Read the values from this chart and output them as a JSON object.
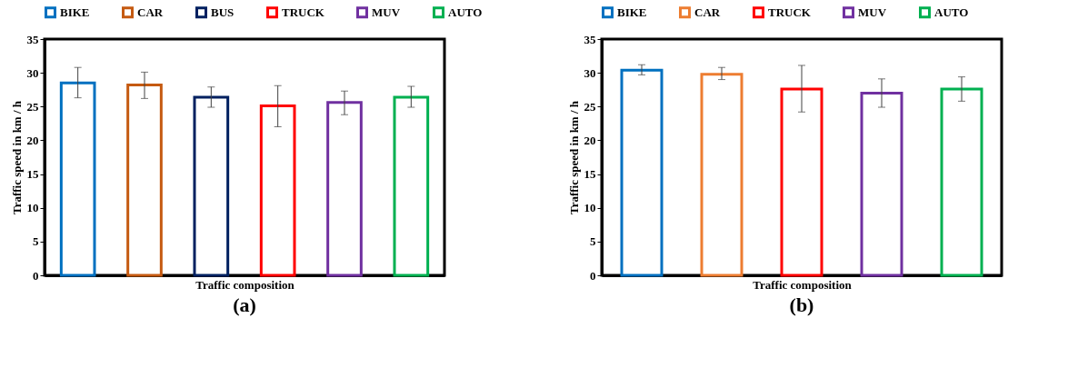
{
  "chart_data": [
    {
      "type": "bar",
      "categories": [
        null,
        null,
        null,
        null,
        null,
        null
      ],
      "xlabel": "Traffic composition",
      "ylabel": "Traffic speed in km / h",
      "ylim": [
        0,
        35
      ],
      "yticks": [
        0,
        5,
        10,
        15,
        20,
        25,
        30,
        35
      ],
      "grid": false,
      "legend": "top",
      "tick_labels": "y",
      "annotations": [
        "(a)"
      ],
      "series": [
        {
          "name": "BIKE",
          "color": "#0070c0",
          "values": [
            28.5,
            null,
            null,
            null,
            null,
            null
          ],
          "errors": [
            [
              26.3,
              30.8
            ],
            null,
            null,
            null,
            null,
            null
          ]
        },
        {
          "name": "CAR",
          "color": "#c55a11",
          "values": [
            null,
            28.2,
            null,
            null,
            null,
            null
          ],
          "errors": [
            null,
            [
              26.2,
              30.1
            ],
            null,
            null,
            null,
            null
          ]
        },
        {
          "name": "BUS",
          "color": "#002060",
          "values": [
            null,
            null,
            26.4,
            null,
            null,
            null
          ],
          "errors": [
            null,
            null,
            [
              24.9,
              27.9
            ],
            null,
            null,
            null
          ]
        },
        {
          "name": "TRUCK",
          "color": "#ff0000",
          "values": [
            null,
            null,
            null,
            25.1,
            null,
            null
          ],
          "errors": [
            null,
            null,
            null,
            [
              22.0,
              28.1
            ],
            null,
            null
          ]
        },
        {
          "name": "MUV",
          "color": "#7030a0",
          "values": [
            null,
            null,
            null,
            null,
            25.6,
            null
          ],
          "errors": [
            null,
            null,
            null,
            null,
            [
              23.8,
              27.3
            ],
            null
          ]
        },
        {
          "name": "AUTO",
          "color": "#00b050",
          "values": [
            null,
            null,
            null,
            null,
            null,
            26.4
          ],
          "errors": [
            null,
            null,
            null,
            null,
            null,
            [
              24.9,
              28.0
            ]
          ]
        }
      ]
    },
    {
      "type": "bar",
      "categories": [
        null,
        null,
        null,
        null,
        null
      ],
      "xlabel": "Traffic composition",
      "ylabel": "Traffic speed in km / h",
      "ylim": [
        0,
        35
      ],
      "yticks": [
        0,
        5,
        10,
        15,
        20,
        25,
        30,
        35
      ],
      "grid": false,
      "legend": "top",
      "tick_labels": "y",
      "annotations": [
        "(b)"
      ],
      "series": [
        {
          "name": "BIKE",
          "color": "#0070c0",
          "values": [
            30.4,
            null,
            null,
            null,
            null
          ],
          "errors": [
            [
              29.7,
              31.2
            ],
            null,
            null,
            null,
            null
          ]
        },
        {
          "name": "CAR",
          "color": "#ed7d31",
          "values": [
            null,
            29.8,
            null,
            null,
            null
          ],
          "errors": [
            null,
            [
              29.0,
              30.8
            ],
            null,
            null,
            null
          ]
        },
        {
          "name": "TRUCK",
          "color": "#ff0000",
          "values": [
            null,
            null,
            27.6,
            null,
            null
          ],
          "errors": [
            null,
            null,
            [
              24.2,
              31.1
            ],
            null,
            null
          ]
        },
        {
          "name": "MUV",
          "color": "#7030a0",
          "values": [
            null,
            null,
            null,
            27.0,
            null
          ],
          "errors": [
            null,
            null,
            null,
            [
              24.9,
              29.1
            ],
            null
          ]
        },
        {
          "name": "AUTO",
          "color": "#00b050",
          "values": [
            null,
            null,
            null,
            null,
            27.6
          ],
          "errors": [
            null,
            null,
            null,
            null,
            [
              25.8,
              29.4
            ]
          ]
        }
      ]
    }
  ]
}
